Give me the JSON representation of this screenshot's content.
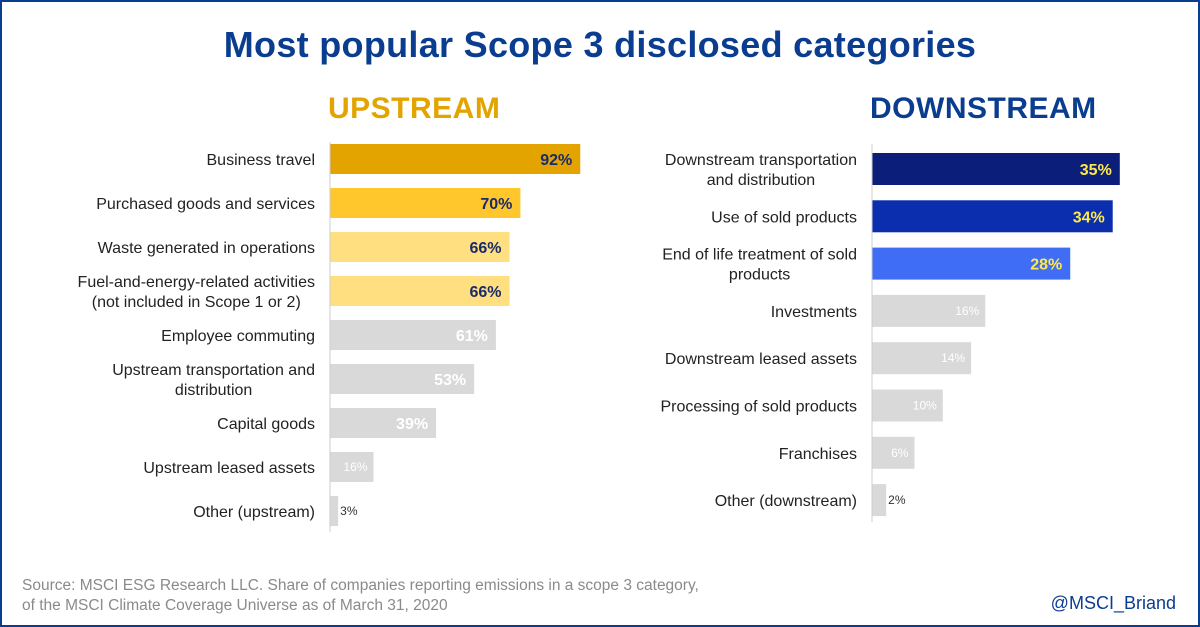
{
  "title": "Most popular Scope 3 disclosed categories",
  "source": {
    "line1": "Source: MSCI ESG Research LLC. Share of companies reporting emissions in a scope 3 category,",
    "line2": "of the MSCI Climate Coverage Universe as of March 31, 2020"
  },
  "handle": "@MSCI_Briand",
  "chart_data": [
    {
      "type": "bar",
      "orientation": "horizontal",
      "title": "UPSTREAM",
      "unit": "%",
      "xlim": [
        0,
        100
      ],
      "categories": [
        [
          "Business travel"
        ],
        [
          "Purchased goods and services"
        ],
        [
          "Waste generated in operations"
        ],
        [
          "Fuel-and-energy-related activities",
          "(not included in Scope 1 or 2)"
        ],
        [
          "Employee commuting"
        ],
        [
          "Upstream transportation and",
          "distribution"
        ],
        [
          "Capital goods"
        ],
        [
          "Upstream leased assets"
        ],
        [
          "Other (upstream)"
        ]
      ],
      "values": [
        92,
        70,
        66,
        66,
        61,
        53,
        39,
        16,
        3
      ],
      "labels": [
        "92%",
        "70%",
        "66%",
        "66%",
        "61%",
        "53%",
        "39%",
        "16%",
        "3%"
      ],
      "colors": [
        "#e3a400",
        "#ffc72c",
        "#ffdf80",
        "#ffdf80",
        "#d9d9d9",
        "#d9d9d9",
        "#d9d9d9",
        "#d9d9d9",
        "#d9d9d9"
      ],
      "label_colors": [
        "#1a2b6b",
        "#1a2b6b",
        "#1a2b6b",
        "#1a2b6b",
        "#ffffff",
        "#ffffff",
        "#ffffff",
        "#ffffff",
        "#333333"
      ]
    },
    {
      "type": "bar",
      "orientation": "horizontal",
      "title": "DOWNSTREAM",
      "unit": "%",
      "xlim": [
        0,
        100
      ],
      "categories": [
        [
          "Downstream transportation",
          "and distribution"
        ],
        [
          "Use of sold products"
        ],
        [
          "End of life treatment of sold",
          "products"
        ],
        [
          "Investments"
        ],
        [
          "Downstream leased assets"
        ],
        [
          "Processing of sold products"
        ],
        [
          "Franchises"
        ],
        [
          "Other (downstream)"
        ]
      ],
      "values": [
        35,
        34,
        28,
        16,
        14,
        10,
        6,
        2
      ],
      "labels": [
        "35%",
        "34%",
        "28%",
        "16%",
        "14%",
        "10%",
        "6%",
        "2%"
      ],
      "colors": [
        "#0b1f7a",
        "#0a2eae",
        "#3f6df5",
        "#d9d9d9",
        "#d9d9d9",
        "#d9d9d9",
        "#d9d9d9",
        "#d9d9d9"
      ],
      "label_colors": [
        "#ffe94a",
        "#ffe94a",
        "#ffe94a",
        "#ffffff",
        "#ffffff",
        "#ffffff",
        "#ffffff",
        "#333333"
      ]
    }
  ]
}
